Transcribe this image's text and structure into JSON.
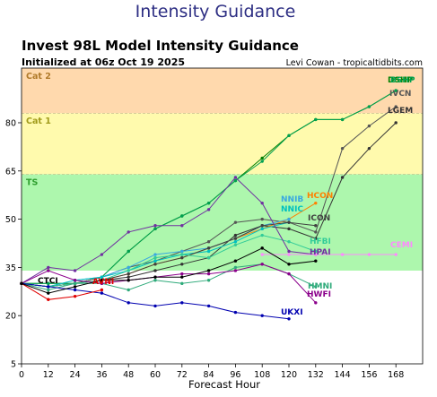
{
  "page": {
    "heading": "Intensity Guidance"
  },
  "chart_data": {
    "type": "line",
    "title": "Invest 98L Model Intensity Guidance",
    "subtitle": "Initialized at 06z Oct 19 2025",
    "credit": "Levi Cowan - tropicaltidbits.com",
    "xlabel": "Forecast Hour",
    "ylabel": "",
    "xlim": [
      0,
      180
    ],
    "ylim": [
      5,
      97
    ],
    "xticks": [
      0,
      12,
      24,
      36,
      48,
      60,
      72,
      84,
      96,
      108,
      120,
      132,
      144,
      156,
      168
    ],
    "yticks": [
      5,
      20,
      35,
      50,
      65,
      80
    ],
    "grid": false,
    "bands": [
      {
        "label": "TS",
        "from": 34,
        "to": 64,
        "color": "#adf7ad"
      },
      {
        "label": "Cat 1",
        "from": 64,
        "to": 83,
        "color": "#fffaad"
      },
      {
        "label": "Cat 2",
        "from": 83,
        "to": 97,
        "color": "#ffd9ad"
      }
    ],
    "series": [
      {
        "name": "DSHP",
        "color": "#008000",
        "x": [
          0,
          12,
          24,
          36,
          48,
          60,
          72,
          84,
          96,
          108,
          120,
          132,
          144,
          156,
          168
        ],
        "y": [
          30,
          30,
          30,
          32,
          40,
          47,
          51,
          55,
          62,
          69,
          76,
          81,
          81,
          85,
          90
        ]
      },
      {
        "name": "BSHP",
        "color": "#00a050",
        "x": [
          0,
          12,
          24,
          36,
          48,
          60,
          72,
          84,
          96,
          108,
          120,
          132,
          144,
          156,
          168
        ],
        "y": [
          30,
          30,
          30,
          32,
          40,
          47,
          51,
          55,
          62,
          68,
          76,
          81,
          81,
          85,
          90
        ]
      },
      {
        "name": "IVCN",
        "color": "#555555",
        "x": [
          0,
          12,
          24,
          36,
          48,
          60,
          72,
          84,
          96,
          108,
          120,
          132,
          144,
          156,
          168
        ],
        "y": [
          30,
          29,
          30,
          32,
          35,
          37,
          40,
          43,
          49,
          50,
          49,
          46,
          72,
          79,
          85
        ]
      },
      {
        "name": "LGEM",
        "color": "#333333",
        "x": [
          0,
          12,
          24,
          36,
          48,
          60,
          72,
          84,
          96,
          108,
          120,
          132,
          144,
          156,
          168
        ],
        "y": [
          30,
          29,
          30,
          31,
          32,
          34,
          36,
          38,
          45,
          48,
          47,
          44,
          63,
          72,
          80
        ]
      },
      {
        "name": "HCON",
        "color": "#ff8000",
        "x": [
          0,
          12,
          24,
          36,
          48,
          60,
          72,
          84,
          96,
          108,
          120,
          132
        ],
        "y": [
          30,
          29,
          30,
          31,
          33,
          36,
          38,
          41,
          44,
          47,
          50,
          55
        ]
      },
      {
        "name": "NNIB",
        "color": "#39a9e0",
        "x": [
          0,
          12,
          24,
          36,
          48,
          60,
          72,
          84,
          96,
          108,
          120
        ],
        "y": [
          30,
          29,
          31,
          32,
          35,
          39,
          40,
          41,
          44,
          48,
          50
        ]
      },
      {
        "name": "NNIC",
        "color": "#00c0c0",
        "x": [
          0,
          12,
          24,
          36,
          48,
          60,
          72,
          84,
          96,
          108,
          120
        ],
        "y": [
          30,
          29,
          31,
          32,
          34,
          37,
          39,
          40,
          43,
          47,
          49
        ]
      },
      {
        "name": "ICON",
        "color": "#404040",
        "x": [
          0,
          12,
          24,
          36,
          48,
          60,
          72,
          84,
          96,
          108,
          120,
          132
        ],
        "y": [
          30,
          29,
          30,
          31,
          33,
          36,
          38,
          41,
          44,
          48,
          49,
          48
        ]
      },
      {
        "name": "HFBI",
        "color": "#33cc99",
        "x": [
          0,
          12,
          24,
          36,
          48,
          60,
          72,
          84,
          96,
          108,
          120,
          132
        ],
        "y": [
          30,
          29,
          30,
          31,
          34,
          38,
          39,
          38,
          42,
          45,
          43,
          40
        ]
      },
      {
        "name": "HPAI",
        "color": "#7030a0",
        "x": [
          0,
          12,
          24,
          36,
          48,
          60,
          72,
          84,
          96,
          108,
          120,
          132
        ],
        "y": [
          30,
          35,
          34,
          39,
          46,
          48,
          48,
          53,
          63,
          55,
          40,
          39
        ]
      },
      {
        "name": "CEMI",
        "color": "#ff88ff",
        "x": [
          108,
          120,
          132,
          144,
          156,
          168
        ],
        "y": [
          39,
          39,
          39,
          39,
          39,
          39
        ]
      },
      {
        "name": "HMNI",
        "color": "#2eaa7a",
        "x": [
          0,
          12,
          24,
          36,
          48,
          60,
          72,
          84,
          96,
          108,
          120,
          132
        ],
        "y": [
          30,
          28,
          30,
          30,
          28,
          31,
          30,
          31,
          35,
          36,
          33,
          29
        ]
      },
      {
        "name": "HWFI",
        "color": "#8b008b",
        "x": [
          0,
          12,
          24,
          36,
          48,
          60,
          72,
          84,
          96,
          108,
          120,
          132
        ],
        "y": [
          30,
          34,
          31,
          30,
          31,
          32,
          33,
          33,
          34,
          36,
          33,
          24
        ]
      },
      {
        "name": "UKXI",
        "color": "#0000b0",
        "x": [
          0,
          12,
          24,
          36,
          48,
          60,
          72,
          84,
          96,
          108,
          120
        ],
        "y": [
          30,
          29,
          28,
          27,
          24,
          23,
          24,
          23,
          21,
          20,
          19
        ]
      },
      {
        "name": "AVNI",
        "color": "#e00000",
        "x": [
          0,
          12,
          24,
          36
        ],
        "y": [
          30,
          25,
          26,
          28
        ]
      },
      {
        "name": "CTCI",
        "color": "#000000",
        "x": [
          0,
          12,
          24,
          36,
          48,
          60,
          72,
          84,
          96,
          108,
          120,
          132
        ],
        "y": [
          30,
          27,
          29,
          31,
          31,
          32,
          32,
          34,
          37,
          41,
          36,
          37
        ]
      }
    ]
  }
}
